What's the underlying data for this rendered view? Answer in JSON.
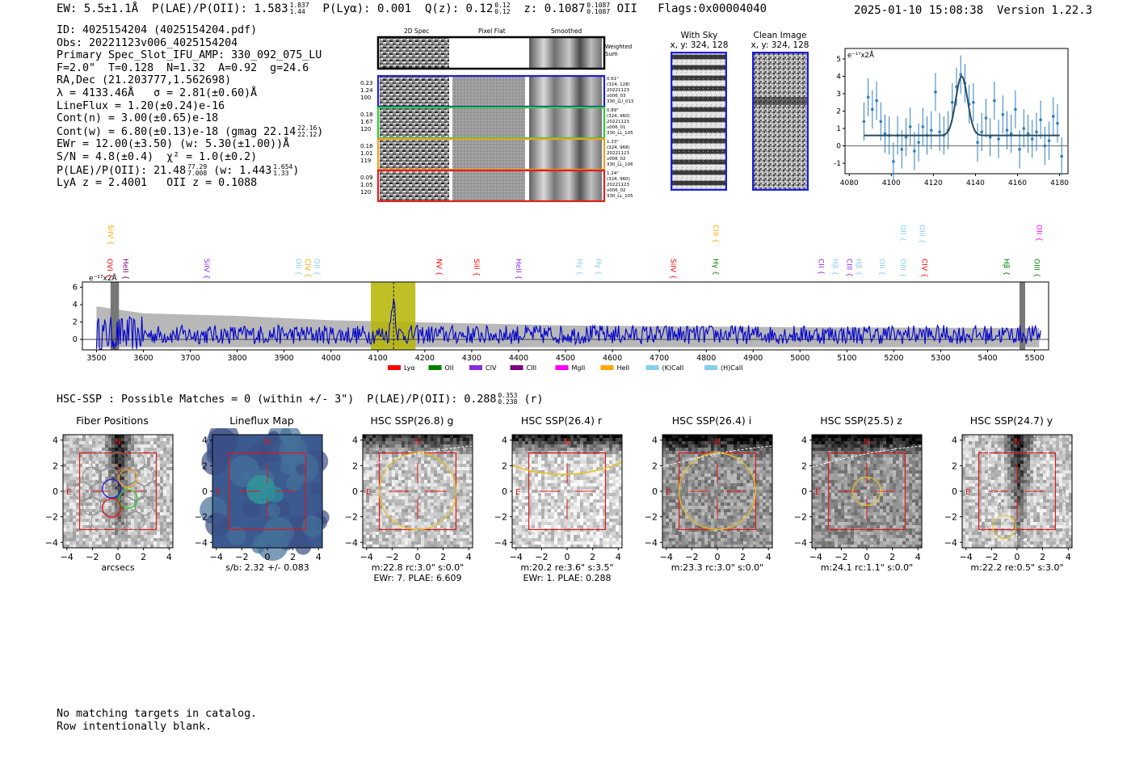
{
  "top_line": {
    "ew": "EW: 5.5±1.1Å",
    "plae": "P(LAE)/P(OII): 1.583",
    "plae_hi": "1.837",
    "plae_lo": "1.44",
    "plya": "P(Lyα): 0.001",
    "qz": "Q(z): 0.12",
    "qz_hi": "0.12",
    "qz_lo": "0.12",
    "z": "z: 0.1087",
    "z_hi": "0.1087",
    "z_lo": "0.1087",
    "z_line": "OII",
    "flags": "Flags:0x00004040",
    "timestamp": "2025-01-10 15:08:38  Version 1.22.3"
  },
  "info": {
    "id": "ID: 4025154204 (4025154204.pdf)",
    "obs": "Obs: 20221123v006_4025154204",
    "primary": "Primary Spec_Slot_IFU_AMP: 330_092_075_LU",
    "fiber": "F=2.0\"  T=0.128  N=1.32  A=0.92  g=24.6",
    "radec": "RA,Dec (21.203777,1.562698)",
    "lambda": "λ = 4133.46Å   σ = 2.81(±0.60)Å",
    "lineflux": "LineFlux = 1.20(±0.24)e-16",
    "contn": "Cont(n) = 3.00(±0.65)e-18",
    "contw": "Cont(w) = 6.80(±0.13)e-18 (gmag 22.14",
    "contw_hi": "22.16",
    "contw_lo": "22.12",
    "contw_end": ")",
    "ewr": "EWr = 12.00(±3.50) (w: 5.30(±1.00))Å",
    "sn": "S/N = 4.8(±0.4)  χ² = 1.0(±0.2)",
    "plae2": "P(LAE)/P(OII): 21.48",
    "plae2_hi": "77.29",
    "plae2_lo": "7.008",
    "plae2_w": "(w: 1.443",
    "plae2_w_hi": "1.654",
    "plae2_w_lo": "1.33",
    "plae2_end": ")",
    "lyaz": "LyA z = 2.4001   OII z = 0.1088"
  },
  "fiber_panels": {
    "headers": [
      "2D Spec",
      "Pixel Flat",
      "Smoothed"
    ],
    "weighted_label": "Weighted Sum",
    "rows": [
      {
        "left": [
          "0.23",
          "1.24",
          "100"
        ],
        "right": [
          "0.61\"",
          "(324, 128)",
          "20221123",
          "v006_03",
          "330_LU_013"
        ],
        "color": "#1f1fd6"
      },
      {
        "left": [
          "0.18",
          "1.67",
          "120"
        ],
        "right": [
          "0.89\"",
          "(324, 960)",
          "20221123",
          "v006_01",
          "330_LL_105"
        ],
        "color": "#2ecc2e"
      },
      {
        "left": [
          "0.16",
          "1.01",
          "119"
        ],
        "right": [
          "1.33\"",
          "(324, 968)",
          "20221123",
          "v006_02",
          "330_LL_106"
        ],
        "color": "#f0a020"
      },
      {
        "left": [
          "0.09",
          "1.05",
          "120"
        ],
        "right": [
          "1.24\"",
          "(324, 960)",
          "20221123",
          "v006_02",
          "330_LL_105"
        ],
        "color": "#e02020"
      }
    ]
  },
  "cutouts": {
    "with_sky": "With Sky\nx, y: 324, 128",
    "clean": "Clean Image\nx, y: 324, 128"
  },
  "zoom_chart": {
    "unit_label": "e⁻¹⁷x2Å",
    "x_ticks": [
      "4080",
      "4100",
      "4120",
      "4140",
      "4160",
      "4180"
    ],
    "y_ticks": [
      "5",
      "4",
      "3",
      "2",
      "1",
      "0",
      "-1"
    ]
  },
  "spectrum": {
    "unit_label": "e⁻¹⁷x2Å",
    "x_ticks": [
      "3500",
      "3600",
      "3700",
      "3800",
      "3900",
      "4000",
      "4100",
      "4200",
      "4300",
      "4400",
      "4500",
      "4600",
      "4700",
      "4800",
      "4900",
      "5000",
      "5100",
      "5200",
      "5300",
      "5400",
      "5500"
    ],
    "y_ticks": [
      "6",
      "4",
      "2",
      "0"
    ],
    "legend": [
      {
        "label": "Lyα",
        "color": "#ff0000"
      },
      {
        "label": "OII",
        "color": "#008000"
      },
      {
        "label": "CIV",
        "color": "#8a2be2"
      },
      {
        "label": "CIII",
        "color": "#800080"
      },
      {
        "label": "MgII",
        "color": "#ff00ff"
      },
      {
        "label": "HeII",
        "color": "#ffa500"
      },
      {
        "label": "(K)CaII",
        "color": "#87ceeb"
      },
      {
        "label": "(H)CaII",
        "color": "#87ceeb"
      }
    ],
    "line_labels_top": [
      {
        "label": "SiIV",
        "color": "#ffa500",
        "wl": 3520
      },
      {
        "label": "CIII",
        "color": "#ffa500",
        "wl": 4810
      },
      {
        "label": "OII",
        "color": "#87ceeb",
        "wl": 5210
      },
      {
        "label": "OIII",
        "color": "#87ceeb",
        "wl": 5250
      },
      {
        "label": "OII",
        "color": "#ff00ff",
        "wl": 5500
      }
    ],
    "line_labels_mid": [
      {
        "label": "OVI",
        "color": "#ff0000",
        "wl": 3518
      },
      {
        "label": "HeII",
        "color": "#800080",
        "wl": 3552
      },
      {
        "label": "SiIV",
        "color": "#8a2be2",
        "wl": 3725
      },
      {
        "label": "OII",
        "color": "#87ceeb",
        "wl": 3920
      },
      {
        "label": "CIV",
        "color": "#ffa500",
        "wl": 3940
      },
      {
        "label": "OII",
        "color": "#87ceeb",
        "wl": 3960
      },
      {
        "label": "NV",
        "color": "#ff0000",
        "wl": 4220
      },
      {
        "label": "SiII",
        "color": "#ff0000",
        "wl": 4300
      },
      {
        "label": "HeII",
        "color": "#8a2be2",
        "wl": 4390
      },
      {
        "label": "Hγ",
        "color": "#87ceeb",
        "wl": 4520
      },
      {
        "label": "Hγ",
        "color": "#87ceeb",
        "wl": 4560
      },
      {
        "label": "SiIV",
        "color": "#ff0000",
        "wl": 4720
      },
      {
        "label": "Hγ",
        "color": "#008000",
        "wl": 4810
      },
      {
        "label": "CII",
        "color": "#8a2be2",
        "wl": 5035
      },
      {
        "label": "Hβ",
        "color": "#87ceeb",
        "wl": 5065
      },
      {
        "label": "CIII",
        "color": "#8a2be2",
        "wl": 5095
      },
      {
        "label": "Hβ",
        "color": "#87ceeb",
        "wl": 5115
      },
      {
        "label": "OII",
        "color": "#87ceeb",
        "wl": 5165
      },
      {
        "label": "OIII",
        "color": "#87ceeb",
        "wl": 5210
      },
      {
        "label": "CIV",
        "color": "#ff0000",
        "wl": 5255
      },
      {
        "label": "Hβ",
        "color": "#008000",
        "wl": 5430
      },
      {
        "label": "OIII",
        "color": "#008000",
        "wl": 5495
      }
    ]
  },
  "hsc": {
    "header": "HSC-SSP : Possible Matches = 0 (within +/- 3\")  P(LAE)/P(OII): 0.288",
    "header_hi": "0.353",
    "header_lo": "0.238",
    "header_end": "(r)",
    "panels": [
      {
        "title": "Fiber Positions",
        "caption1": "arcsecs",
        "caption2": ""
      },
      {
        "title": "Lineflux Map",
        "caption1": "s/b: 2.32 +/- 0.083",
        "caption2": ""
      },
      {
        "title": "HSC SSP(26.8) g",
        "caption1": "m:22.8 rc:3.0\"  s:0.0\"",
        "caption2": "EWr: 7. PLAE: 6.609"
      },
      {
        "title": "HSC SSP(26.4) r",
        "caption1": "m:20.2  re:3.6\"  s:3.5\"",
        "caption2": "EWr: 1. PLAE: 0.288"
      },
      {
        "title": "HSC SSP(26.4) i",
        "caption1": "m:23.3 rc:3.0\"  s:0.0\"",
        "caption2": ""
      },
      {
        "title": "HSC SSP(25.5) z",
        "caption1": "m:24.1 rc:1.1\"  s:0.0\"",
        "caption2": ""
      },
      {
        "title": "HSC SSP(24.7) y",
        "caption1": "m:22.2  re:0.5\"  s:3.0\"",
        "caption2": ""
      }
    ],
    "axis_ticks": [
      "−4",
      "−2",
      "0",
      "2",
      "4"
    ],
    "north": "N",
    "east": "E"
  },
  "catalog_note": {
    "line1": "No matching targets in catalog.",
    "line2": "Row intentionally blank."
  },
  "chart_data": [
    {
      "type": "scatter",
      "title": "",
      "xlabel": "",
      "ylabel": "e⁻¹⁷x2Å",
      "xlim": [
        4078,
        4184
      ],
      "ylim": [
        -1.6,
        5.6
      ],
      "x": [
        4087,
        4089,
        4091,
        4093,
        4095,
        4097,
        4099,
        4101,
        4103,
        4105,
        4107,
        4109,
        4111,
        4113,
        4115,
        4117,
        4119,
        4121,
        4123,
        4125,
        4127,
        4129,
        4131,
        4133,
        4135,
        4137,
        4139,
        4141,
        4143,
        4145,
        4147,
        4149,
        4151,
        4153,
        4155,
        4157,
        4159,
        4161,
        4163,
        4165,
        4167,
        4169,
        4171,
        4173,
        4175,
        4177,
        4179,
        4181
      ],
      "y": [
        1.4,
        2.8,
        2.1,
        2.6,
        1.4,
        0.7,
        0.6,
        -0.9,
        0.6,
        -0.2,
        0.5,
        1.1,
        -0.3,
        0.2,
        1.1,
        0.6,
        0.9,
        3.1,
        0.8,
        0.6,
        0.9,
        2.5,
        3.4,
        4.1,
        3.6,
        2.4,
        2.5,
        0.2,
        0.8,
        1.6,
        0.5,
        2.6,
        0.4,
        1.8,
        0.9,
        0.7,
        2.1,
        -0.2,
        1.0,
        0.7,
        0.4,
        0.8,
        1.5,
        0.0,
        0.3,
        1.7,
        1.3,
        -0.6
      ],
      "yerr": 1.1,
      "fit": {
        "type": "gaussian",
        "center": 4133.46,
        "sigma": 2.81,
        "amplitude": 3.4,
        "baseline": 0.6,
        "xrange": [
          4087,
          4180
        ]
      }
    },
    {
      "type": "line",
      "title": "",
      "xlabel": "",
      "ylabel": "e⁻¹⁷x2Å",
      "xlim": [
        3470,
        5530
      ],
      "ylim": [
        -1.2,
        6.6
      ],
      "highlight_band": [
        4085,
        4180
      ],
      "line_marker": 4133.46,
      "series": [
        {
          "name": "",
          "color": "#0000cc",
          "kind": "noisy-line",
          "mean": 0.55,
          "scatter": 1.1,
          "peak_at": 4133,
          "peak": 4.2
        },
        {
          "name": "",
          "color": "#b8b8b8",
          "kind": "noise-envelope",
          "profile": [
            [
              3500,
              3.8
            ],
            [
              3600,
              3.0
            ],
            [
              3800,
              2.7
            ],
            [
              4000,
              2.2
            ],
            [
              4500,
              1.6
            ],
            [
              5000,
              1.4
            ],
            [
              5500,
              1.3
            ]
          ]
        }
      ]
    }
  ]
}
